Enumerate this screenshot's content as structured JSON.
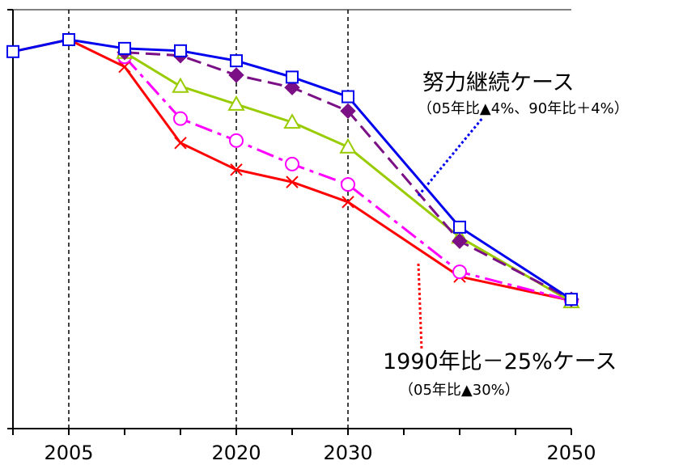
{
  "chart_data": {
    "type": "line",
    "title": "",
    "xlabel": "",
    "ylabel": "",
    "x": [
      2000,
      2005,
      2010,
      2015,
      2020,
      2025,
      2030,
      2040,
      2050
    ],
    "x_tick_labels": [
      "2005",
      "2020",
      "2030",
      "2050"
    ],
    "x_tick_values": [
      2005,
      2020,
      2030,
      2050
    ],
    "xlim": [
      2000,
      2050
    ],
    "ylim": [
      0,
      105
    ],
    "grid": "vertical dashed lines at 2005, 2020, 2030",
    "legend": "none (annotations)",
    "series": [
      {
        "key": "effort",
        "x": [
          2000,
          2005,
          2010,
          2015,
          2020,
          2025,
          2030,
          2040,
          2050
        ],
        "values": [
          94.5,
          97.5,
          95.3,
          94.7,
          92.2,
          88.1,
          83.2,
          50.5,
          32.4
        ],
        "color": "#0000ee",
        "dash": "solid",
        "marker": "square"
      },
      {
        "key": "diamond",
        "x": [
          2010,
          2015,
          2020,
          2025,
          2030,
          2040,
          2050
        ],
        "values": [
          94.3,
          93.5,
          88.6,
          85.5,
          79.6,
          47.0,
          32.4
        ],
        "color": "#7b0f86",
        "dash": "long-dash",
        "marker": "diamond"
      },
      {
        "key": "triangle",
        "x": [
          2010,
          2015,
          2020,
          2025,
          2030,
          2040,
          2050
        ],
        "values": [
          94.3,
          85.8,
          81.3,
          76.8,
          70.6,
          48.0,
          31.8
        ],
        "color": "#99cc00",
        "dash": "solid",
        "marker": "triangle"
      },
      {
        "key": "circle",
        "x": [
          2010,
          2015,
          2020,
          2025,
          2030,
          2040,
          2050
        ],
        "values": [
          93.2,
          77.7,
          72.2,
          66.3,
          61.2,
          39.3,
          32.1
        ],
        "color": "#ff00ff",
        "dash": "dash-dot",
        "marker": "circle"
      },
      {
        "key": "target",
        "x": [
          2000,
          2005,
          2010,
          2015,
          2020,
          2025,
          2030,
          2040,
          2050
        ],
        "values": [
          94.5,
          97.5,
          90.7,
          71.6,
          64.9,
          61.8,
          56.8,
          38.1,
          32.1
        ],
        "color": "#ff0000",
        "dash": "solid",
        "marker": "x"
      }
    ],
    "annotations": [
      {
        "key": "effort",
        "main": "努力継続ケース",
        "sub": "（05年比▲4%、90年比＋4%）",
        "color": "#0000ee"
      },
      {
        "key": "target",
        "main": "1990年比－25%ケース",
        "sub": "（05年比▲30%）",
        "color": "#ff0000"
      }
    ],
    "colors": {
      "axis": "#000000",
      "top_rule": "#808080",
      "grid": "#000000"
    }
  }
}
